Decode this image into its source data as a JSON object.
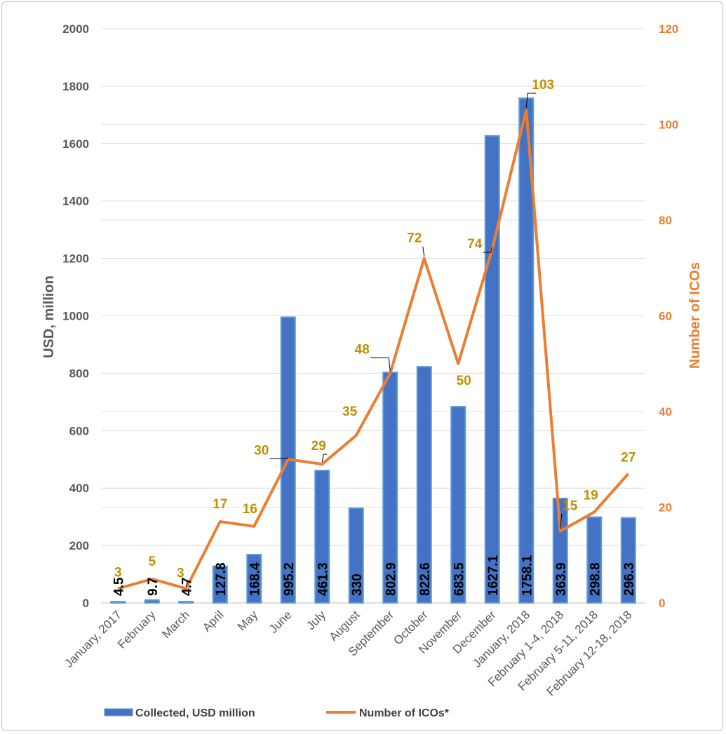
{
  "chart_data": {
    "type": "bar",
    "categories": [
      "January, 2017",
      "February",
      "March",
      "April",
      "May",
      "June",
      "July",
      "August",
      "September",
      "October",
      "November",
      "December",
      "January, 2018",
      "February 1-4, 2018",
      "February 5-11, 2018",
      "February 12-18, 2018"
    ],
    "series": [
      {
        "name": "Collected, USD million",
        "type": "bar",
        "axis": "left",
        "color": "#4472c4",
        "values": [
          4.5,
          9.7,
          4.7,
          127.8,
          168.4,
          995.2,
          461.3,
          330,
          802.9,
          822.6,
          683.5,
          1627.1,
          1758.1,
          363.9,
          298.8,
          296.3
        ],
        "labels": [
          "4.5",
          "9.7",
          "4.7",
          "127.8",
          "168.4",
          "995.2",
          "461.3",
          "330",
          "802.9",
          "822.6",
          "683.5",
          "1627.1",
          "1758.1",
          "363.9",
          "298.8",
          "296.3"
        ]
      },
      {
        "name": "Number of ICOs*",
        "type": "line",
        "axis": "right",
        "color": "#ed7d31",
        "values": [
          3,
          5,
          3,
          17,
          16,
          30,
          29,
          35,
          48,
          72,
          50,
          74,
          103,
          15,
          19,
          27
        ],
        "labels": [
          "3",
          "5",
          "3",
          "17",
          "16",
          "30",
          "29",
          "35",
          "48",
          "72",
          "50",
          "74",
          "103",
          "15",
          "19",
          "27"
        ]
      }
    ],
    "ylabel": "USD, million",
    "y2label": "Number of ICOs",
    "ylim": [
      0,
      2000
    ],
    "y2lim": [
      0,
      120
    ],
    "yticks": [
      "0",
      "200",
      "400",
      "600",
      "800",
      "1000",
      "1200",
      "1400",
      "1600",
      "1800",
      "2000"
    ],
    "y2ticks": [
      "0",
      "20",
      "40",
      "60",
      "80",
      "100",
      "120"
    ],
    "grid": true,
    "legend": "bottom",
    "colors": {
      "bar": "#4472c4",
      "line": "#ed7d31",
      "line_label": "#bf9000"
    }
  }
}
